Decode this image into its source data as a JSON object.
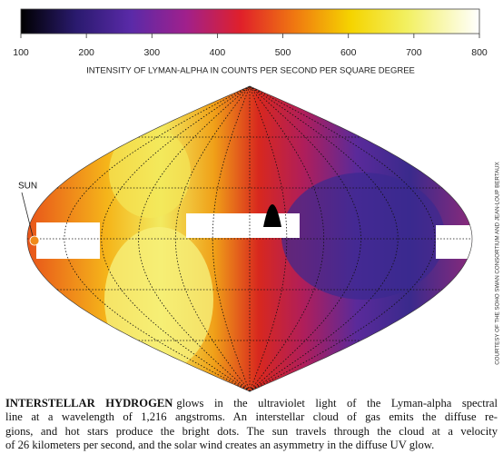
{
  "colorbar": {
    "lim": [
      100,
      800
    ],
    "ticks": [
      100,
      200,
      300,
      400,
      500,
      600,
      700,
      800
    ],
    "label": "INTENSITY OF LYMAN-ALPHA IN COUNTS PER SECOND PER SQUARE DEGREE"
  },
  "map": {
    "sun_label": "SUN"
  },
  "credit": "COURTESY OF THE SOHO SWAN CONSORTIUM AND JEAN-LOUP BERTAUX",
  "caption": {
    "lead": "INTERSTELLAR HYDROGEN",
    "lines": [
      "glows in the ultraviolet light of the Lyman-alpha spectral",
      "line at a wavelength of 1,216 angstroms. An interstellar cloud of gas emits the diffuse re-",
      "gions, and hot stars produce the bright dots. The sun travels through the cloud at a velocity",
      "of 26 kilometers per second, and the solar wind creates an asymmetry in the diffuse UV glow."
    ]
  }
}
